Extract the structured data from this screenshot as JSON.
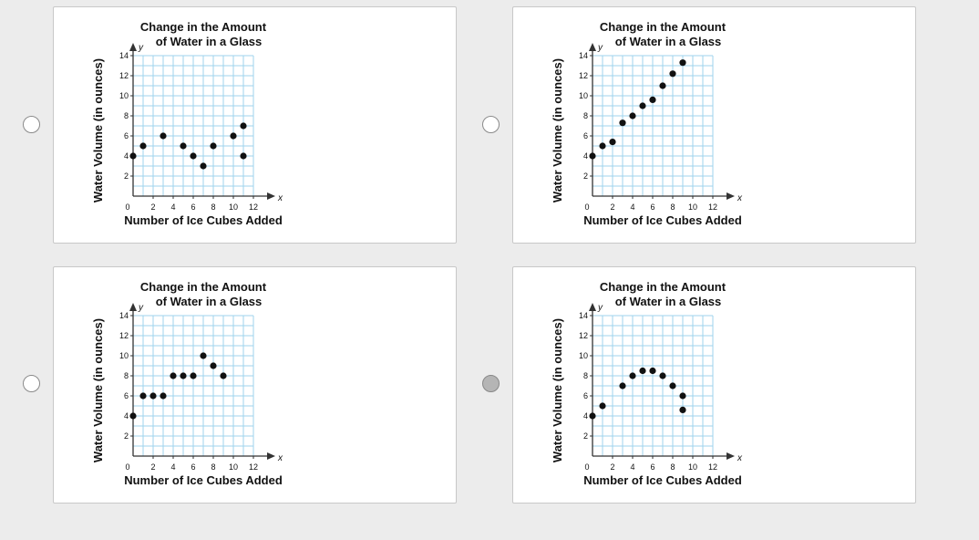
{
  "question": {
    "selected_option": 4
  },
  "chart_data": [
    {
      "type": "scatter",
      "title": [
        "Change in the Amount",
        "of Water in a Glass"
      ],
      "xlabel": "Number of Ice Cubes Added",
      "ylabel": "Water Volume (in ounces)",
      "x_axis_letter": "x",
      "y_axis_letter": "y",
      "xlim": [
        0,
        12
      ],
      "ylim": [
        0,
        14
      ],
      "xticks": [
        0,
        2,
        4,
        6,
        8,
        10,
        12
      ],
      "yticks": [
        2,
        4,
        6,
        8,
        10,
        12,
        14
      ],
      "grid": true,
      "points": [
        [
          0,
          4
        ],
        [
          1,
          5
        ],
        [
          3,
          6
        ],
        [
          5,
          5
        ],
        [
          6,
          4
        ],
        [
          7,
          3
        ],
        [
          8,
          5
        ],
        [
          10,
          6
        ],
        [
          11,
          7
        ],
        [
          11,
          4
        ]
      ]
    },
    {
      "type": "scatter",
      "title": [
        "Change in the Amount",
        "of Water in a Glass"
      ],
      "xlabel": "Number of Ice Cubes Added",
      "ylabel": "Water Volume (in ounces)",
      "x_axis_letter": "x",
      "y_axis_letter": "y",
      "xlim": [
        0,
        12
      ],
      "ylim": [
        0,
        14
      ],
      "xticks": [
        0,
        2,
        4,
        6,
        8,
        10,
        12
      ],
      "yticks": [
        2,
        4,
        6,
        8,
        10,
        12,
        14
      ],
      "grid": true,
      "points": [
        [
          0,
          4
        ],
        [
          1,
          5
        ],
        [
          2,
          5.4
        ],
        [
          3,
          7.3
        ],
        [
          4,
          8
        ],
        [
          5,
          9
        ],
        [
          6,
          9.6
        ],
        [
          7,
          11
        ],
        [
          8,
          12.2
        ],
        [
          9,
          13.3
        ]
      ]
    },
    {
      "type": "scatter",
      "title": [
        "Change in the Amount",
        "of Water in a Glass"
      ],
      "xlabel": "Number of Ice Cubes Added",
      "ylabel": "Water Volume (in ounces)",
      "x_axis_letter": "x",
      "y_axis_letter": "y",
      "xlim": [
        0,
        12
      ],
      "ylim": [
        0,
        14
      ],
      "xticks": [
        0,
        2,
        4,
        6,
        8,
        10,
        12
      ],
      "yticks": [
        2,
        4,
        6,
        8,
        10,
        12,
        14
      ],
      "grid": true,
      "points": [
        [
          0,
          4
        ],
        [
          1,
          6
        ],
        [
          2,
          6
        ],
        [
          3,
          6
        ],
        [
          4,
          8
        ],
        [
          5,
          8
        ],
        [
          6,
          8
        ],
        [
          7,
          10
        ],
        [
          8,
          9
        ],
        [
          9,
          8
        ]
      ]
    },
    {
      "type": "scatter",
      "title": [
        "Change in the Amount",
        "of Water in a Glass"
      ],
      "xlabel": "Number of Ice Cubes Added",
      "ylabel": "Water Volume (in ounces)",
      "x_axis_letter": "x",
      "y_axis_letter": "y",
      "xlim": [
        0,
        12
      ],
      "ylim": [
        0,
        14
      ],
      "xticks": [
        0,
        2,
        4,
        6,
        8,
        10,
        12
      ],
      "yticks": [
        2,
        4,
        6,
        8,
        10,
        12,
        14
      ],
      "grid": true,
      "points": [
        [
          0,
          4
        ],
        [
          1,
          5
        ],
        [
          3,
          7
        ],
        [
          4,
          8
        ],
        [
          5,
          8.5
        ],
        [
          6,
          8.5
        ],
        [
          7,
          8
        ],
        [
          8,
          7
        ],
        [
          9,
          6
        ],
        [
          9,
          4.6
        ]
      ]
    }
  ]
}
